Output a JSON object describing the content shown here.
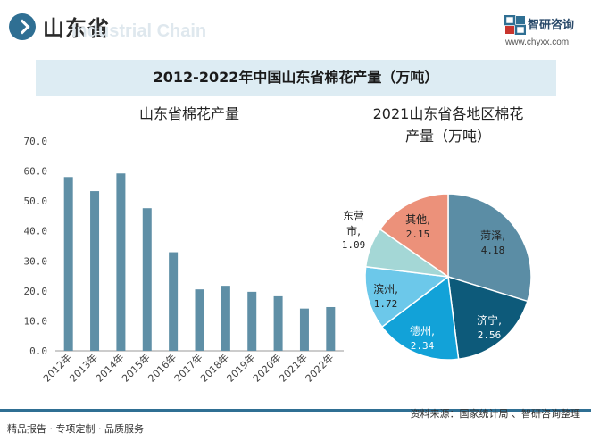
{
  "header": {
    "region": "山东省",
    "watermark": "Industrial Chain",
    "brand_name": "智研咨询",
    "brand_url": "www.chyxx.com"
  },
  "main_title": "2012-2022年中国山东省棉花产量（万吨）",
  "footer": {
    "left_text": "精品报告 · 专项定制 · 品质服务",
    "source": "资料来源：国家统计局 、智研咨询整理"
  },
  "chart_data": [
    {
      "type": "bar",
      "title": "山东省棉花产量",
      "categories": [
        "2012年",
        "2013年",
        "2014年",
        "2015年",
        "2016年",
        "2017年",
        "2018年",
        "2019年",
        "2020年",
        "2021年",
        "2022年"
      ],
      "values": [
        58.0,
        53.3,
        59.2,
        47.6,
        32.9,
        20.5,
        21.7,
        19.7,
        18.2,
        14.1,
        14.6
      ],
      "ylim": [
        0,
        70
      ],
      "yticks": [
        "0.0",
        "10.0",
        "20.0",
        "30.0",
        "40.0",
        "50.0",
        "60.0",
        "70.0"
      ],
      "color": "#5f8fa6"
    },
    {
      "type": "pie",
      "title": "2021山东省各地区棉花产量（万吨）",
      "title_lines": [
        "2021山东省各地区棉花",
        "产量（万吨）"
      ],
      "slices": [
        {
          "name": "菏泽",
          "value": 4.18,
          "label": "4.18",
          "color": "#5b8da5"
        },
        {
          "name": "济宁",
          "value": 2.56,
          "label": "2.56",
          "color": "#0d5a7a"
        },
        {
          "name": "德州",
          "value": 2.34,
          "label": "2.34",
          "color": "#12a2d8"
        },
        {
          "name": "滨州",
          "value": 1.72,
          "label": "1.72",
          "color": "#6cc8ea"
        },
        {
          "name": "东营市",
          "value": 1.09,
          "label": "1.09",
          "color": "#a4d7d6"
        },
        {
          "name": "其他",
          "value": 2.15,
          "label": "2.15",
          "color": "#ec917a"
        }
      ]
    }
  ]
}
